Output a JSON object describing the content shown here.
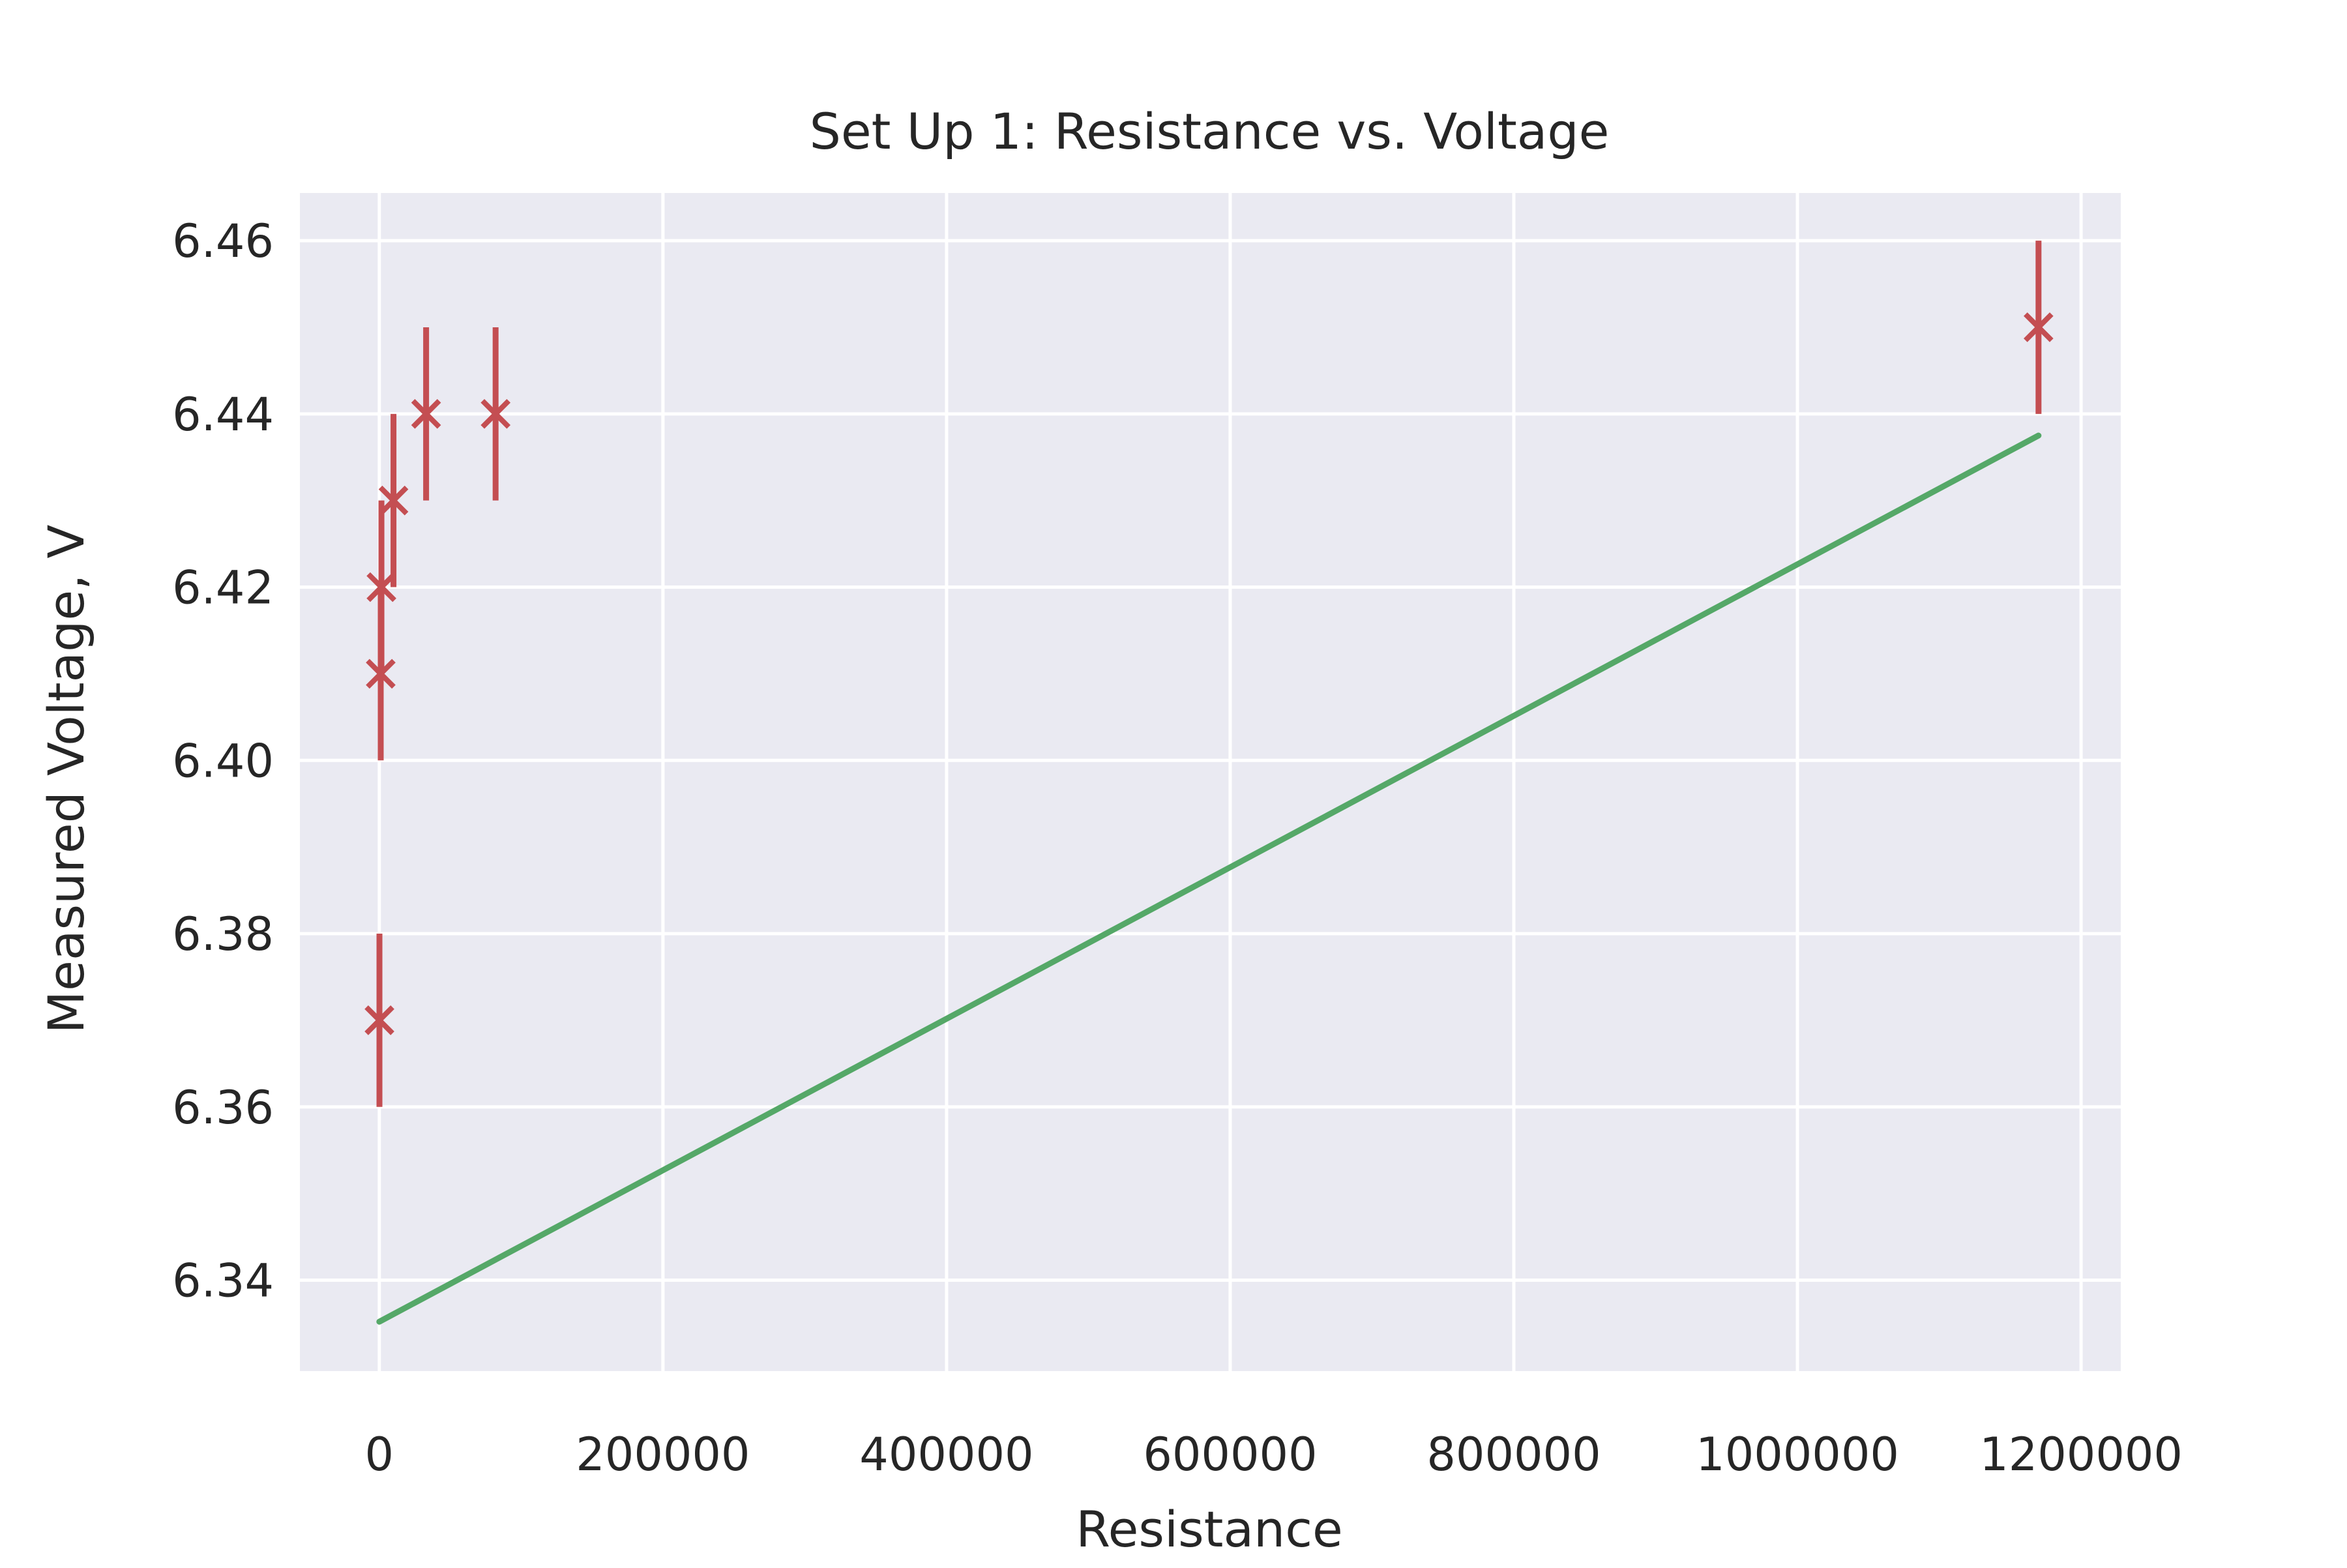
{
  "chart_data": {
    "type": "scatter",
    "title": "Set Up 1: Resistance vs. Voltage",
    "xlabel": "Resistance",
    "ylabel": "Measured Voltage, V",
    "xlim": [
      -56000,
      1228000
    ],
    "ylim": [
      6.3295,
      6.4655
    ],
    "xticks": [
      0,
      200000,
      400000,
      600000,
      800000,
      1000000,
      1200000
    ],
    "xtick_labels": [
      "0",
      "200000",
      "400000",
      "600000",
      "800000",
      "1000000",
      "1200000"
    ],
    "yticks": [
      6.34,
      6.36,
      6.38,
      6.4,
      6.42,
      6.44,
      6.46
    ],
    "ytick_labels": [
      "6.34",
      "6.36",
      "6.38",
      "6.40",
      "6.42",
      "6.44",
      "6.46"
    ],
    "grid": true,
    "background_color": "#eaeaf2",
    "grid_color": "#ffffff",
    "series": [
      {
        "kind": "errorbar",
        "marker": "x",
        "color": "#c44e52",
        "points": [
          {
            "x": 100,
            "y": 6.37,
            "yerr": 0.01
          },
          {
            "x": 1000,
            "y": 6.41,
            "yerr": 0.01
          },
          {
            "x": 1500,
            "y": 6.42,
            "yerr": 0.01
          },
          {
            "x": 10000,
            "y": 6.43,
            "yerr": 0.01
          },
          {
            "x": 33000,
            "y": 6.44,
            "yerr": 0.01
          },
          {
            "x": 82000,
            "y": 6.44,
            "yerr": 0.01
          },
          {
            "x": 1170000,
            "y": 6.45,
            "yerr": 0.01
          }
        ]
      },
      {
        "kind": "line",
        "color": "#55a868",
        "x": [
          0,
          1170000
        ],
        "y": [
          6.3352,
          6.4375
        ]
      }
    ]
  }
}
